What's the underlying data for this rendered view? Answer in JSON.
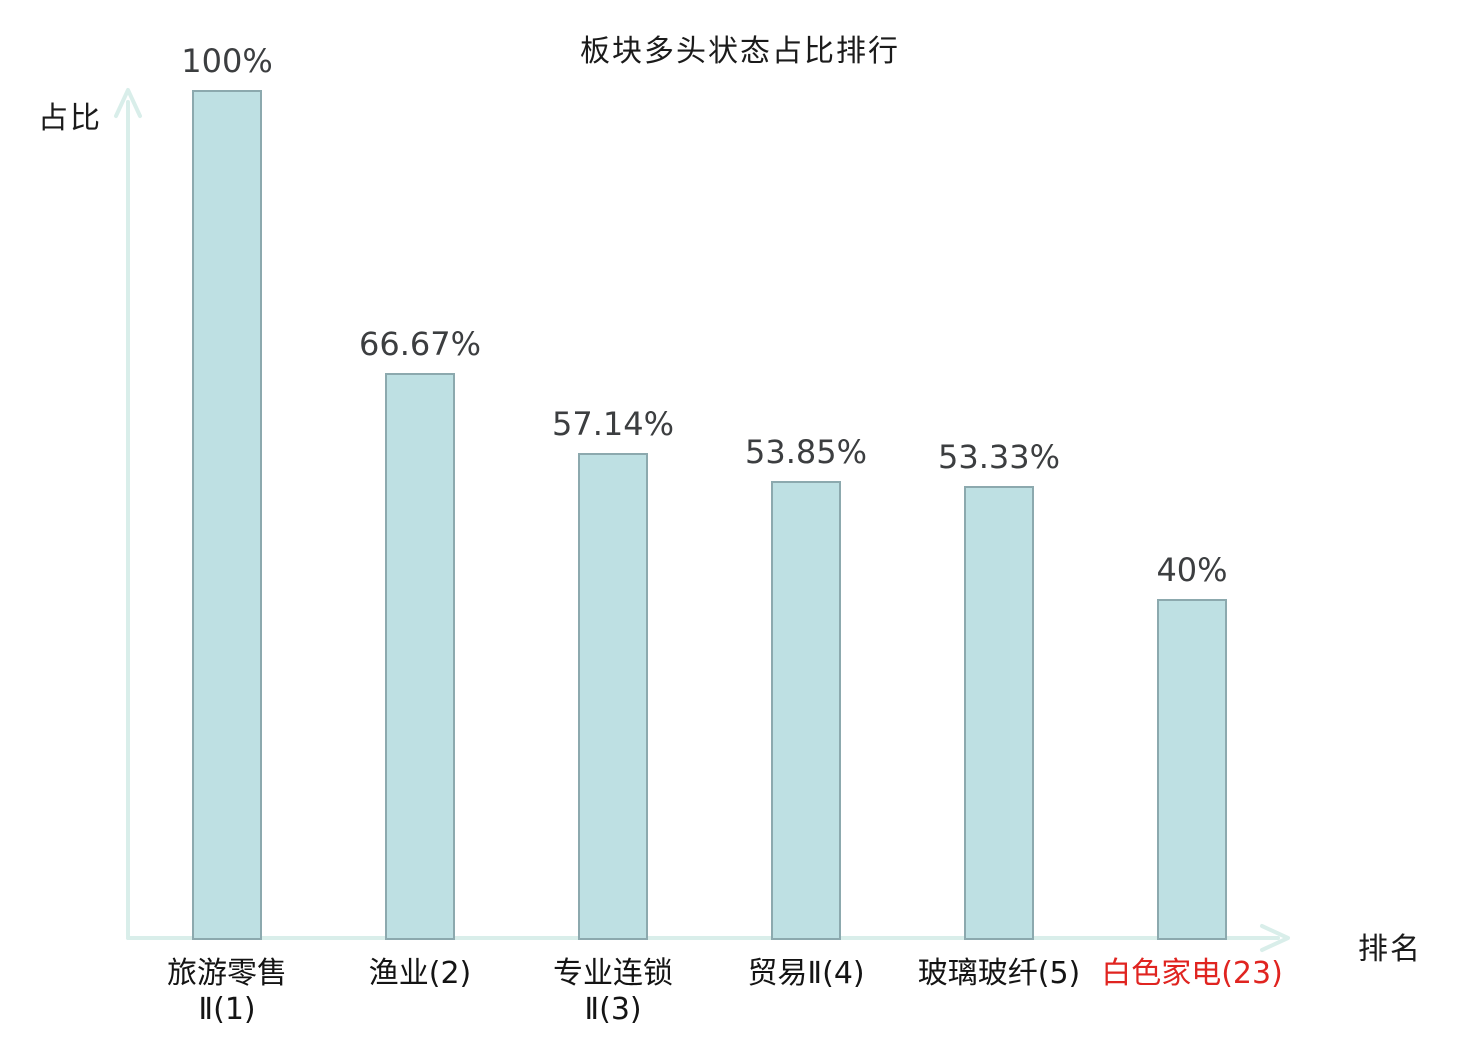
{
  "chart_data": {
    "type": "bar",
    "title": "板块多头状态占比排行",
    "xlabel": "排名",
    "ylabel": "占比",
    "categories": [
      "旅游零售Ⅱ(1)",
      "渔业(2)",
      "专业连锁Ⅱ(3)",
      "贸易Ⅱ(4)",
      "玻璃玻纤(5)",
      "白色家电(23)"
    ],
    "category_lines": [
      [
        "旅游零售",
        "Ⅱ(1)"
      ],
      [
        "渔业(2)"
      ],
      [
        "专业连锁",
        "Ⅱ(3)"
      ],
      [
        "贸易Ⅱ(4)"
      ],
      [
        "玻璃玻纤(5)"
      ],
      [
        "白色家电(23)"
      ]
    ],
    "values": [
      100,
      66.67,
      57.14,
      53.85,
      53.33,
      40
    ],
    "value_labels": [
      "100%",
      "66.67%",
      "57.14%",
      "53.85%",
      "53.33%",
      "40%"
    ],
    "ylim": [
      0,
      100
    ],
    "grid": false,
    "legend": "none",
    "highlight_index": 5,
    "colors": {
      "bar_fill": "#bee0e3",
      "bar_border": "#8ca9ae",
      "axis": "#d9eeea",
      "value_text": "#3c3e40",
      "category_text": "#141414",
      "highlight_text": "#e02420"
    }
  }
}
